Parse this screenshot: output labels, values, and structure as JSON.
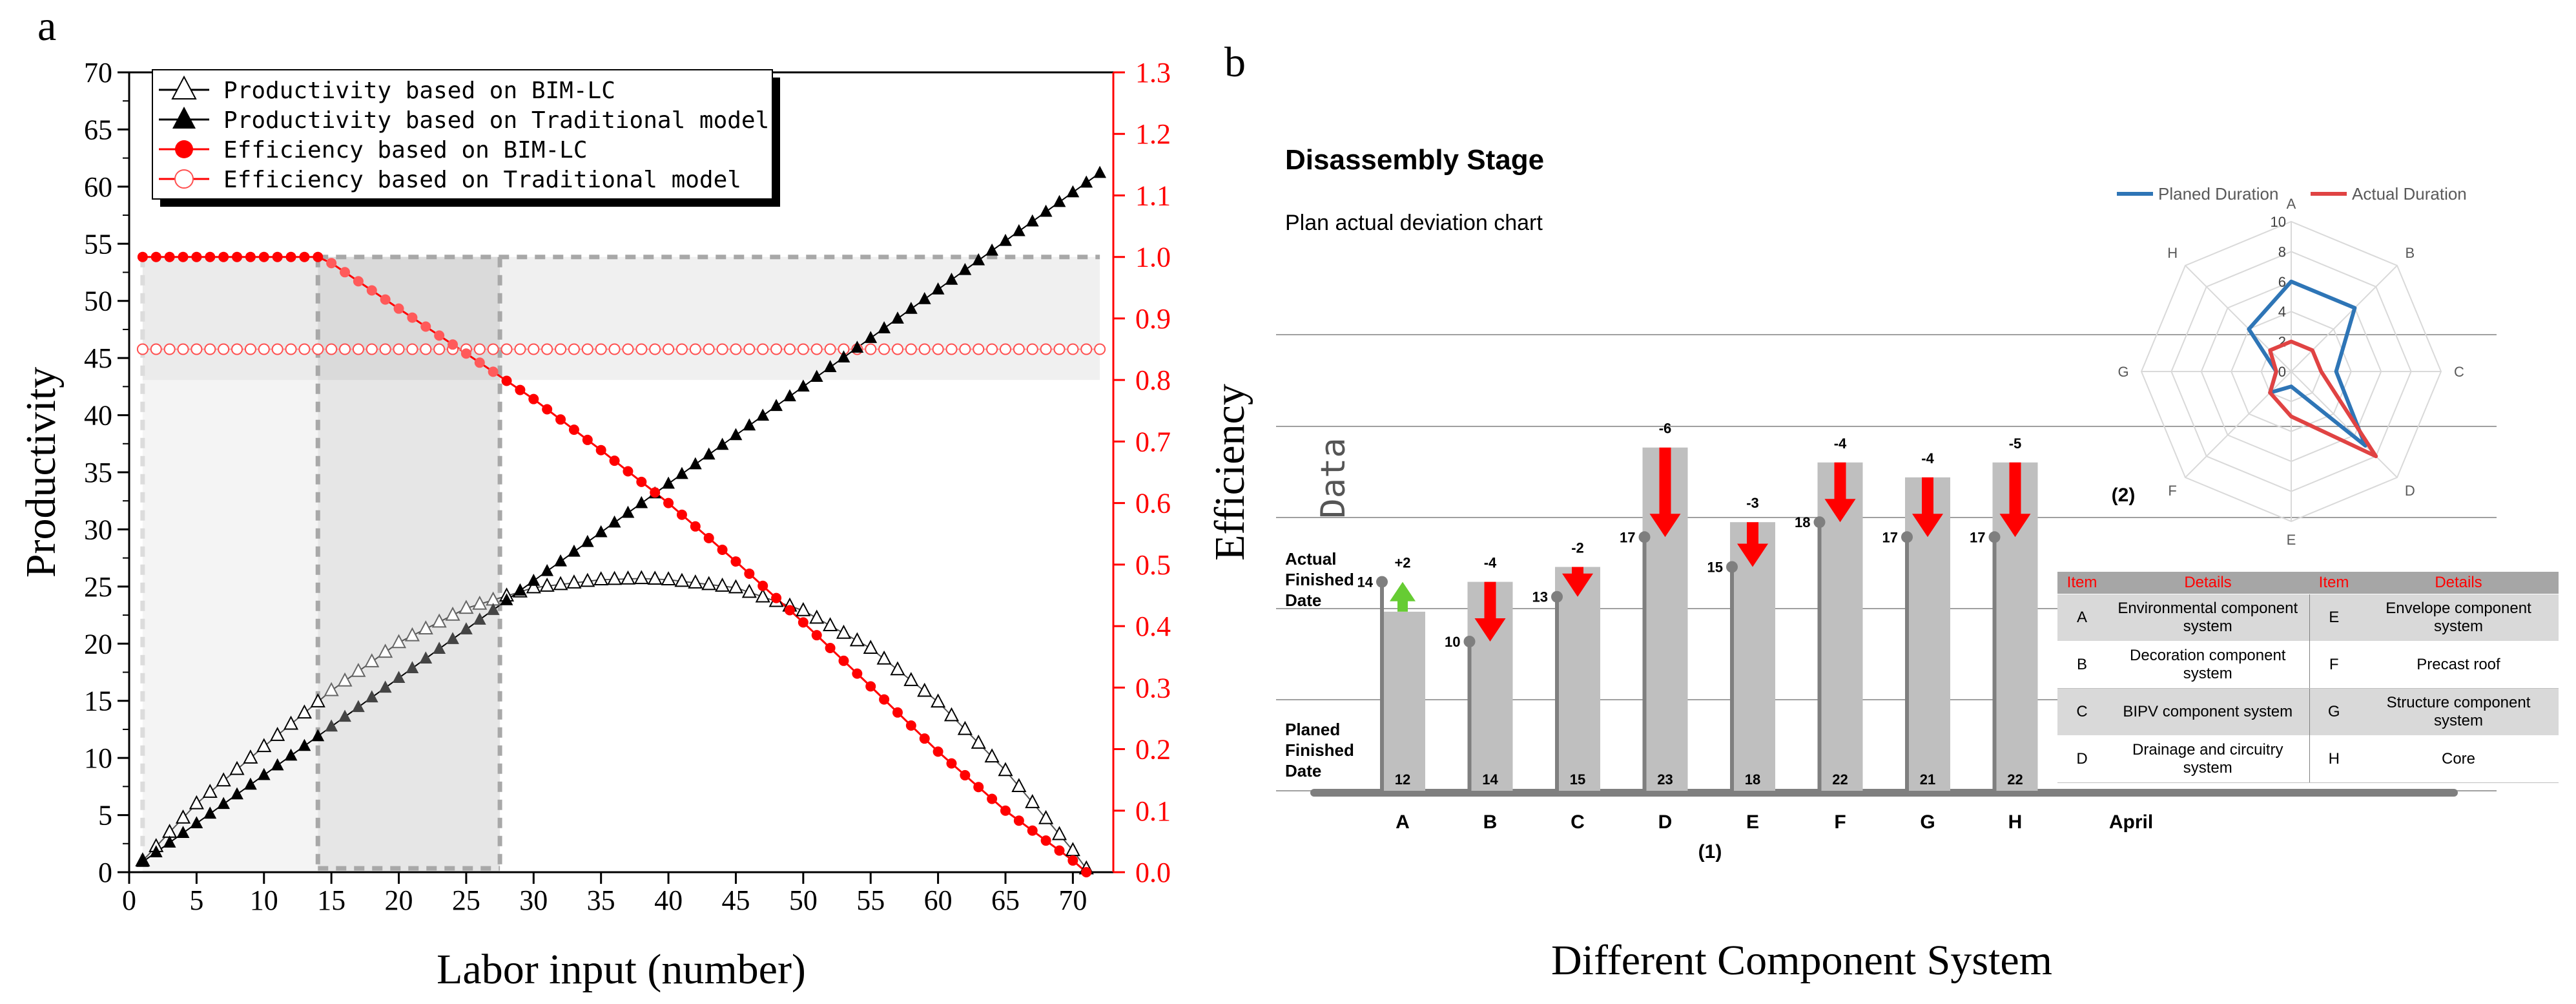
{
  "panel_a": {
    "label": "a",
    "chart_data": {
      "type": "line",
      "xlabel": "Labor input (number)",
      "ylabel_left": "Productivity",
      "ylabel_right": "Efficiency",
      "xlim": [
        0,
        73
      ],
      "ylim_left": [
        0,
        70
      ],
      "ylim_right": [
        0,
        1.3
      ],
      "x_ticks": [
        "0",
        "5",
        "10",
        "15",
        "20",
        "25",
        "30",
        "35",
        "40",
        "45",
        "50",
        "55",
        "60",
        "65",
        "70"
      ],
      "y_left_ticks": [
        "0",
        "5",
        "10",
        "15",
        "20",
        "25",
        "30",
        "35",
        "40",
        "45",
        "50",
        "55",
        "60",
        "65",
        "70"
      ],
      "y_right_ticks": [
        "0.0",
        "0.1",
        "0.2",
        "0.3",
        "0.4",
        "0.5",
        "0.6",
        "0.7",
        "0.8",
        "0.9",
        "1.0",
        "1.1",
        "1.2",
        "1.3"
      ],
      "series": [
        {
          "name": "Productivity based on BIM-LC",
          "axis": "left",
          "marker": "open-triangle",
          "color": "#000000",
          "x": [
            1,
            5,
            10,
            15,
            20,
            25,
            30,
            35,
            38,
            40,
            45,
            50,
            55,
            60,
            65,
            70,
            71
          ],
          "y": [
            1,
            6,
            11,
            15.9,
            20.1,
            23.1,
            24.9,
            25.6,
            25.7,
            25.6,
            24.9,
            22.9,
            19.6,
            14.9,
            8.9,
            1.9,
            0.3
          ]
        },
        {
          "name": "Productivity based on Traditional model",
          "axis": "left",
          "marker": "filled-triangle",
          "color": "#000000",
          "x": [
            1,
            10,
            20,
            30,
            40,
            50,
            60,
            70,
            72
          ],
          "y": [
            0.9,
            8.5,
            17,
            25.5,
            34,
            42.5,
            51,
            59.5,
            61.2
          ]
        },
        {
          "name": "Efficiency based on BIM-LC",
          "axis": "right",
          "marker": "filled-circle",
          "color": "#ff0000",
          "x": [
            1,
            5,
            10,
            14,
            15,
            20,
            25,
            30,
            35,
            40,
            45,
            50,
            55,
            60,
            65,
            70,
            71
          ],
          "y": [
            1,
            1,
            1,
            1,
            0.99,
            0.916,
            0.843,
            0.769,
            0.686,
            0.6,
            0.505,
            0.406,
            0.302,
            0.196,
            0.1,
            0.019,
            0
          ]
        },
        {
          "name": "Efficiency based on Traditional model",
          "axis": "right",
          "marker": "open-circle",
          "color": "#ff0000",
          "x": [
            1,
            72
          ],
          "y": [
            0.85,
            0.85
          ]
        }
      ],
      "shaded_x_regions": [
        [
          1,
          14
        ],
        [
          14,
          27.5
        ],
        [
          27.5,
          72
        ]
      ],
      "shaded_y_band_right": [
        0.8,
        1.0
      ],
      "legend_position": "top-left",
      "grid": false
    }
  },
  "panel_b": {
    "label": "b",
    "title": "Disassembly Stage",
    "subtitle": "Plan actual deviation chart",
    "ylabel": "Data",
    "xlabel": "Different Component System",
    "row_label_actual": [
      "Actual",
      "Finished",
      "Date"
    ],
    "row_label_planned": [
      "Planed",
      "Finished",
      "Date"
    ],
    "month_label": "April",
    "sub_label_1": "(1)",
    "sub_label_2": "(2)",
    "chart_data": {
      "type": "bar",
      "categories": [
        "A",
        "B",
        "C",
        "D",
        "E",
        "F",
        "G",
        "H"
      ],
      "planned": [
        12,
        14,
        15,
        23,
        18,
        22,
        21,
        22
      ],
      "actual": [
        14,
        10,
        13,
        17,
        15,
        18,
        17,
        17
      ],
      "deviation": [
        "+2",
        "-4",
        "-2",
        "-6",
        "-3",
        "-4",
        "-4",
        "-5"
      ],
      "ylim": [
        0,
        26
      ]
    },
    "radar": {
      "chart_data": {
        "type": "radar",
        "axes": [
          "A",
          "B",
          "C",
          "D",
          "E",
          "F",
          "G",
          "H"
        ],
        "ticks": [
          "0",
          "2",
          "4",
          "6",
          "8",
          "10"
        ],
        "rlim": [
          0,
          10
        ],
        "series": [
          {
            "name": "Planed Duration",
            "color": "#2e75b6",
            "values": [
              6,
              6,
              3,
              7,
              1,
              2,
              1,
              4
            ]
          },
          {
            "name": "Actual Duration",
            "color": "#e04343",
            "values": [
              2,
              2,
              2,
              8,
              3,
              2,
              1,
              2
            ]
          }
        ]
      }
    },
    "table": {
      "headers": [
        "Item",
        "Details",
        "Item",
        "Details"
      ],
      "rows": [
        [
          "A",
          "Environmental component system",
          "E",
          "Envelope component system"
        ],
        [
          "B",
          "Decoration component system",
          "F",
          "Precast roof"
        ],
        [
          "C",
          "BIPV component system",
          "G",
          "Structure component system"
        ],
        [
          "D",
          "Drainage and circuitry system",
          "H",
          "Core"
        ]
      ]
    }
  }
}
